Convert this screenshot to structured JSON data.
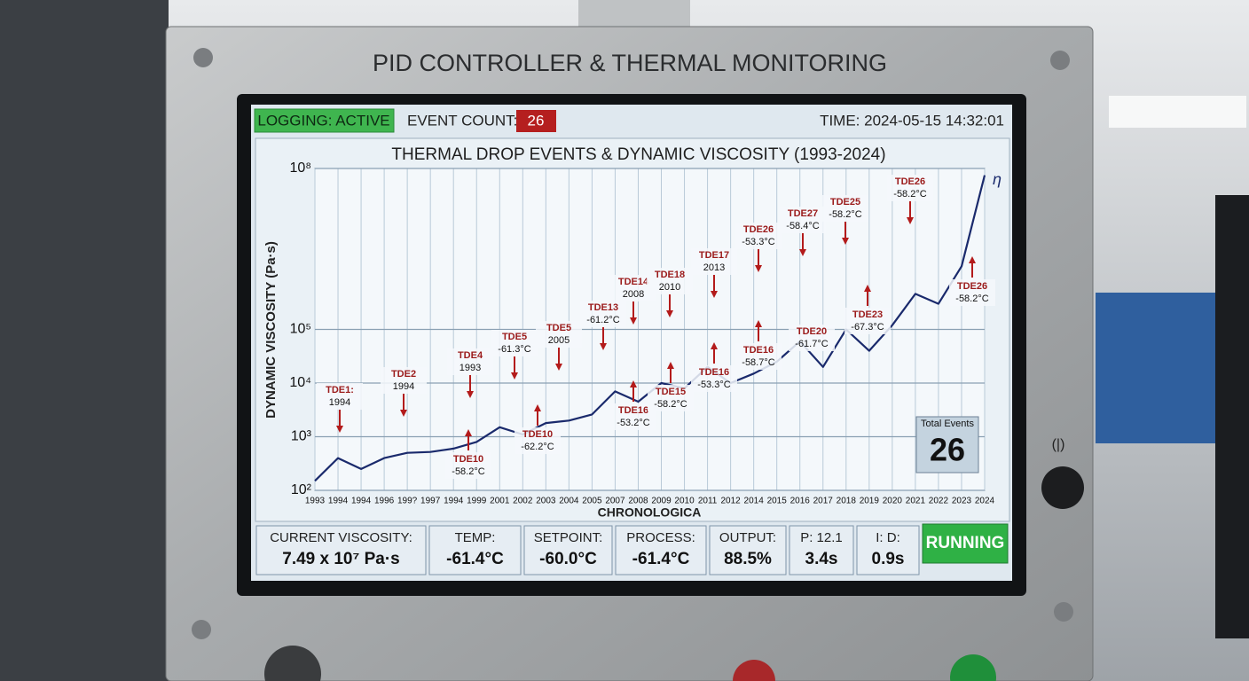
{
  "panel": {
    "title": "PID CONTROLLER & THERMAL MONITORING"
  },
  "status_bar": {
    "logging": "LOGGING: ACTIVE",
    "event_count_label": "EVENT COUNT:",
    "event_count": "26",
    "time": "TIME: 2024-05-15 14:32:01"
  },
  "chart_data": {
    "type": "line",
    "title": "THERMAL DROP EVENTS & DYNAMIC VISCOSITY (1993-2024)",
    "y_label": "DYNAMIC VISCOSITY (Pa·s)",
    "x_label": "CHRONOLOGICA",
    "series_symbol": "η",
    "categories": [
      "1993",
      "1994",
      "1994",
      "1996",
      "199?",
      "1997",
      "1994",
      "1999",
      "2001",
      "2002",
      "2003",
      "2004",
      "2005",
      "2007",
      "2008",
      "2009",
      "2010",
      "2011",
      "2012",
      "2014",
      "2015",
      "2016",
      "2017",
      "2018",
      "2019",
      "2020",
      "2021",
      "2022",
      "2023",
      "2024"
    ],
    "series": [
      {
        "name": "η",
        "color": "#1a2a6c",
        "values": [
          150,
          400,
          250,
          400,
          500,
          520,
          600,
          800,
          1500,
          1100,
          1800,
          2000,
          2600,
          7000,
          4500,
          10000,
          8000,
          20000,
          10000,
          15000,
          25000,
          60000,
          20000,
          100000,
          40000,
          120000,
          460000,
          300000,
          1500000,
          74900000
        ]
      }
    ],
    "log_scale": true,
    "grid": true,
    "ylim": [
      100,
      100000000
    ],
    "yticks": [
      {
        "value": 100,
        "label": "10²"
      },
      {
        "value": 1000,
        "label": "10³"
      },
      {
        "value": 10000,
        "label": "10⁴"
      },
      {
        "value": 100000,
        "label": "10⁵"
      },
      {
        "value": 100000000,
        "label": "10⁸"
      }
    ],
    "annotations": [
      {
        "name": "TDE1:",
        "detail": "1994"
      },
      {
        "name": "TDE2",
        "detail": "1994"
      },
      {
        "name": "TDE4",
        "detail": "1993"
      },
      {
        "name": "TDE10",
        "detail": "-58.2°C"
      },
      {
        "name": "TDE5",
        "detail": "-61.3°C"
      },
      {
        "name": "TDE10",
        "detail": "-62.2°C"
      },
      {
        "name": "TDE5",
        "detail": "2005"
      },
      {
        "name": "TDE13",
        "detail": "-61.2°C"
      },
      {
        "name": "TDE14",
        "detail": "2008"
      },
      {
        "name": "TDE16",
        "detail": "-53.2°C"
      },
      {
        "name": "TDE18",
        "detail": "2010"
      },
      {
        "name": "TDE15",
        "detail": "-58.2°C"
      },
      {
        "name": "TDE17",
        "detail": "2013"
      },
      {
        "name": "TDE16",
        "detail": "-53.3°C"
      },
      {
        "name": "TDE26",
        "detail": "-53.3°C"
      },
      {
        "name": "TDE16",
        "detail": "-58.7°C"
      },
      {
        "name": "TDE27",
        "detail": "-58.4°C"
      },
      {
        "name": "TDE20",
        "detail": "-61.7°C"
      },
      {
        "name": "TDE25",
        "detail": "-58.2°C"
      },
      {
        "name": "TDE23",
        "detail": "-67.3°C"
      },
      {
        "name": "TDE26",
        "detail": "-58.2°C"
      },
      {
        "name": "TDE26",
        "detail": "-58.2°C"
      }
    ],
    "total_events_label": "Total Events",
    "total_events": "26"
  },
  "readouts": [
    {
      "label": "CURRENT VISCOSITY:",
      "value": "7.49 x 10⁷ Pa·s"
    },
    {
      "label": "TEMP:",
      "value": "-61.4°C"
    },
    {
      "label": "SETPOINT:",
      "value": "-60.0°C"
    },
    {
      "label": "PROCESS:",
      "value": "-61.4°C"
    },
    {
      "label": "OUTPUT:",
      "value": "88.5%"
    },
    {
      "label": "P: 12.1",
      "value": "3.4s"
    },
    {
      "label": "I: D:",
      "value": "0.9s"
    }
  ],
  "run_state": "RUNNING"
}
